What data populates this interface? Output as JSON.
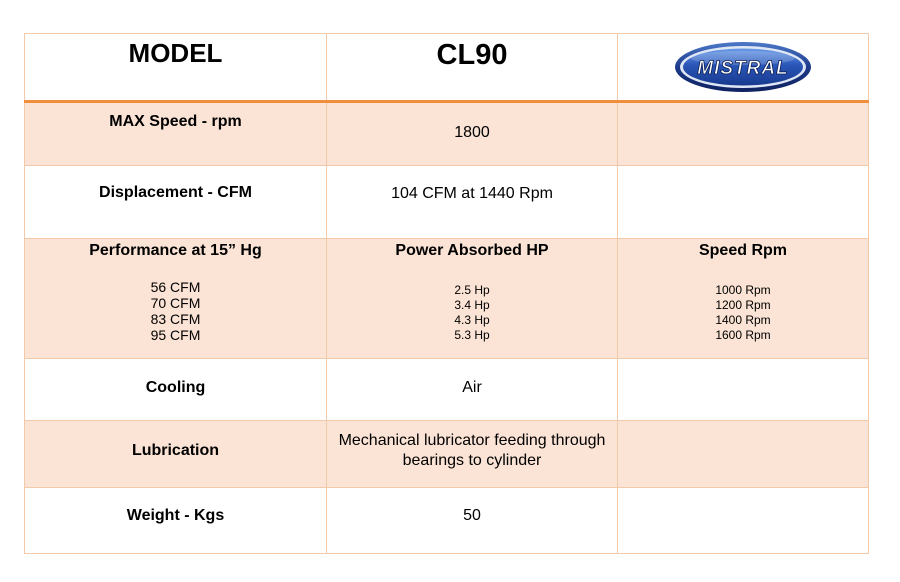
{
  "header": {
    "model_label": "MODEL",
    "model_name": "CL90",
    "logo_text": "MISTRAL"
  },
  "rows": {
    "max_speed": {
      "label": "MAX Speed - rpm",
      "value": "1800"
    },
    "displacement": {
      "label": "Displacement -  CFM",
      "value": "104 CFM at 1440 Rpm"
    },
    "performance": {
      "label": "Performance at 15” Hg",
      "power_label": "Power Absorbed HP",
      "speed_label": "Speed Rpm",
      "cfm": [
        "56 CFM",
        "70 CFM",
        "83 CFM",
        "95 CFM"
      ],
      "hp": [
        "2.5 Hp",
        "3.4 Hp",
        "4.3 Hp",
        "5.3 Hp"
      ],
      "rpm": [
        "1000 Rpm",
        "1200 Rpm",
        "1400 Rpm",
        "1600 Rpm"
      ]
    },
    "cooling": {
      "label": "Cooling",
      "value": "Air"
    },
    "lubrication": {
      "label": "Lubrication",
      "value": "Mechanical lubricator feeding through bearings to cylinder"
    },
    "weight": {
      "label": "Weight - Kgs",
      "value": "50"
    }
  },
  "colors": {
    "accent_line": "#ef8f3e",
    "row_shade": "#fbe4d5",
    "cell_border": "#f2c9a9",
    "logo_blue": "#1d3a8a"
  }
}
